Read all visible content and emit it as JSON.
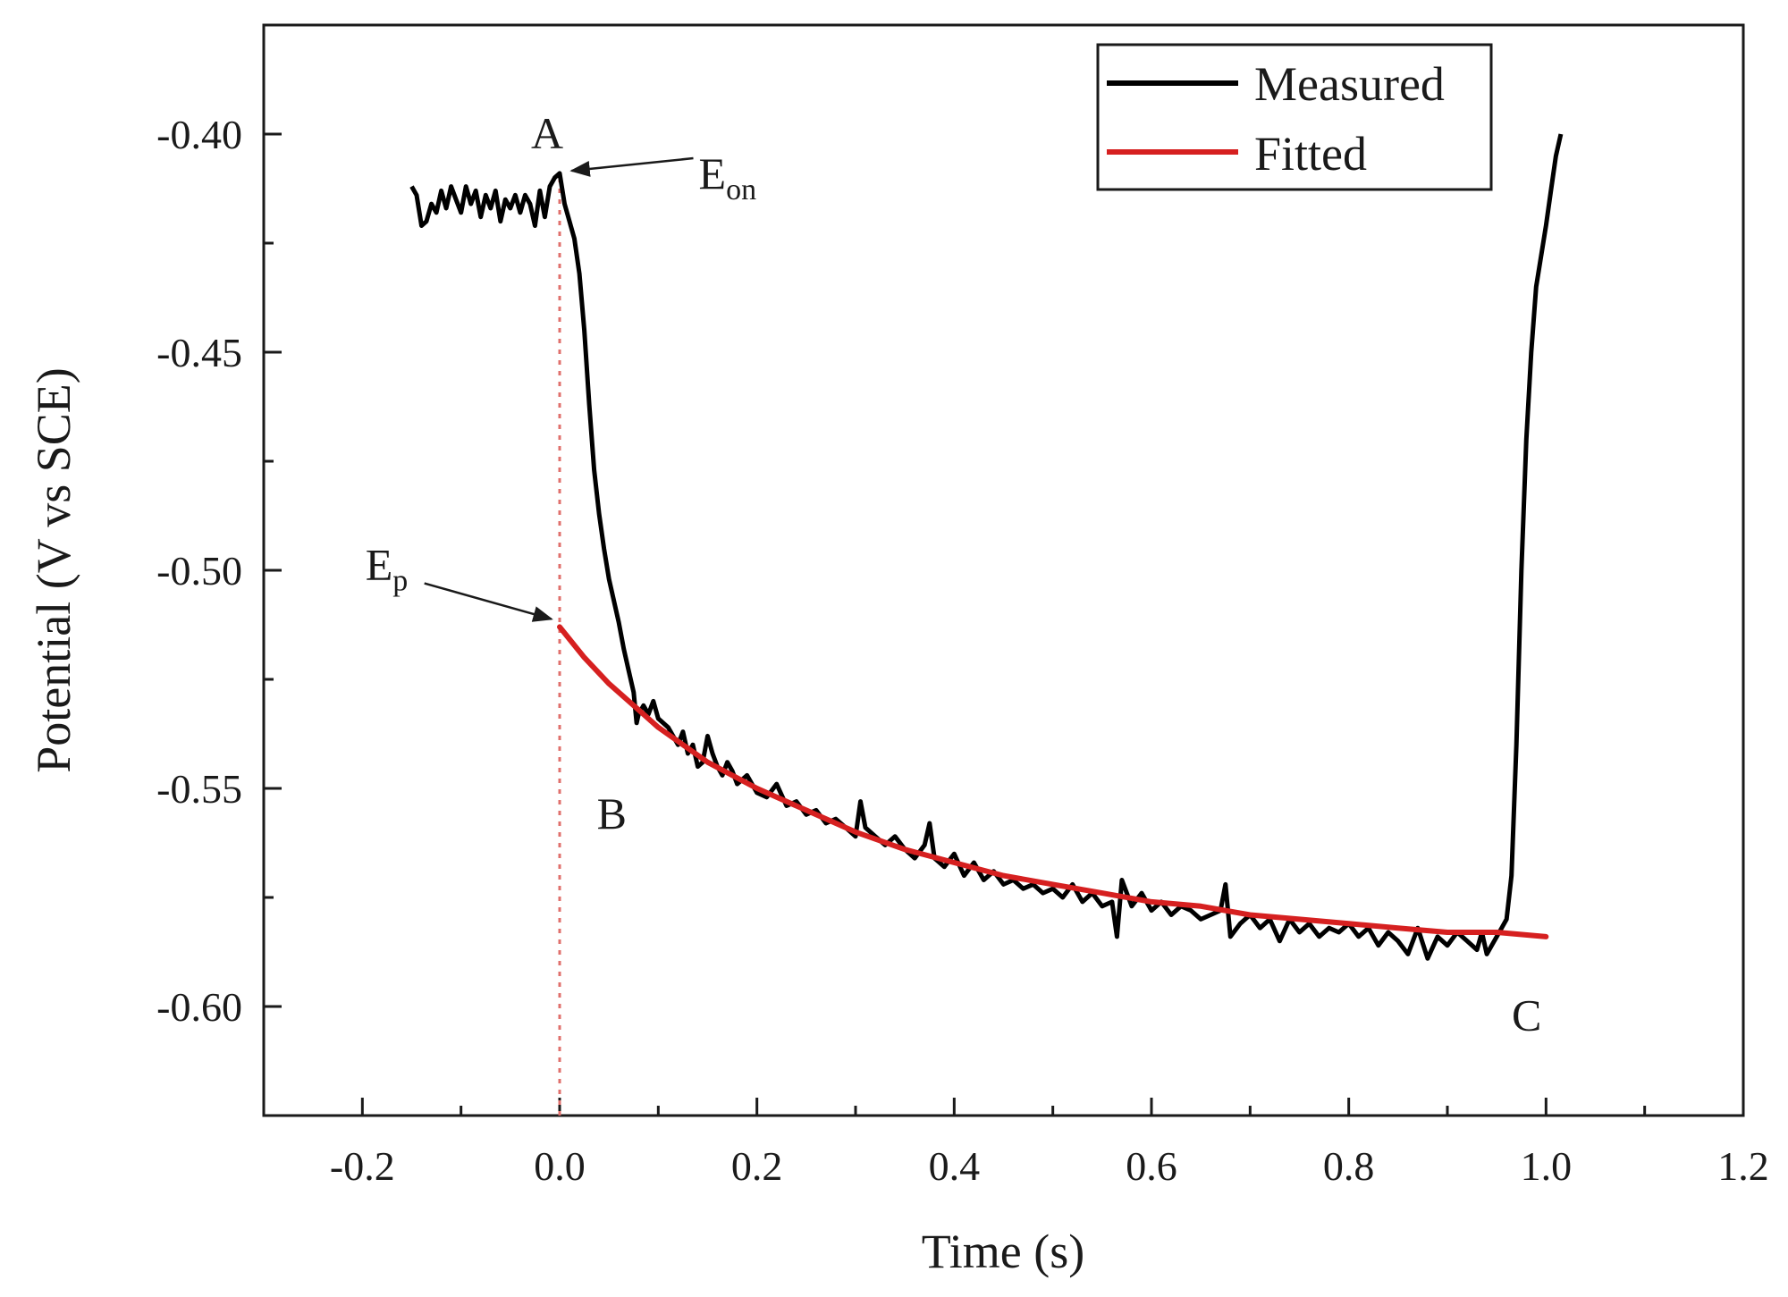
{
  "chart_data": {
    "type": "line",
    "title": "",
    "xlabel": "Time (s)",
    "ylabel": "Potential (V vs SCE)",
    "xlim": [
      -0.3,
      1.2
    ],
    "ylim": [
      -0.625,
      -0.375
    ],
    "xticks": [
      -0.2,
      0.0,
      0.2,
      0.4,
      0.6,
      0.8,
      1.0,
      1.2
    ],
    "xtick_labels": [
      "-0.2",
      "0.0",
      "0.2",
      "0.4",
      "0.6",
      "0.8",
      "1.0",
      "1.2"
    ],
    "yticks": [
      -0.4,
      -0.45,
      -0.5,
      -0.55,
      -0.6
    ],
    "ytick_labels": [
      "-0.40",
      "-0.45",
      "-0.50",
      "-0.55",
      "-0.60"
    ],
    "grid": false,
    "legend_position": "top-right",
    "series": [
      {
        "name": "Measured",
        "color": "#000000",
        "x": [
          -0.15,
          -0.145,
          -0.14,
          -0.135,
          -0.13,
          -0.125,
          -0.12,
          -0.115,
          -0.11,
          -0.105,
          -0.1,
          -0.095,
          -0.09,
          -0.085,
          -0.08,
          -0.075,
          -0.07,
          -0.065,
          -0.06,
          -0.055,
          -0.05,
          -0.045,
          -0.04,
          -0.035,
          -0.03,
          -0.025,
          -0.02,
          -0.015,
          -0.01,
          -0.005,
          0.0,
          0.005,
          0.01,
          0.015,
          0.02,
          0.025,
          0.03,
          0.035,
          0.04,
          0.045,
          0.05,
          0.055,
          0.06,
          0.065,
          0.07,
          0.075,
          0.078,
          0.08,
          0.085,
          0.09,
          0.095,
          0.1,
          0.105,
          0.11,
          0.115,
          0.12,
          0.125,
          0.13,
          0.135,
          0.14,
          0.145,
          0.15,
          0.155,
          0.16,
          0.165,
          0.17,
          0.175,
          0.18,
          0.19,
          0.2,
          0.21,
          0.22,
          0.23,
          0.24,
          0.25,
          0.26,
          0.27,
          0.28,
          0.29,
          0.3,
          0.305,
          0.31,
          0.32,
          0.33,
          0.34,
          0.35,
          0.36,
          0.37,
          0.375,
          0.38,
          0.39,
          0.4,
          0.41,
          0.42,
          0.43,
          0.44,
          0.45,
          0.46,
          0.47,
          0.48,
          0.49,
          0.5,
          0.51,
          0.52,
          0.53,
          0.54,
          0.55,
          0.56,
          0.565,
          0.57,
          0.58,
          0.59,
          0.6,
          0.61,
          0.62,
          0.63,
          0.64,
          0.65,
          0.66,
          0.67,
          0.675,
          0.68,
          0.69,
          0.7,
          0.71,
          0.72,
          0.73,
          0.74,
          0.75,
          0.76,
          0.77,
          0.78,
          0.79,
          0.8,
          0.81,
          0.82,
          0.83,
          0.84,
          0.85,
          0.86,
          0.87,
          0.88,
          0.89,
          0.9,
          0.91,
          0.92,
          0.93,
          0.935,
          0.94,
          0.945,
          0.95,
          0.955,
          0.96,
          0.965,
          0.97,
          0.975,
          0.98,
          0.985,
          0.99,
          0.995,
          1.0,
          1.005,
          1.01,
          1.015
        ],
        "y": [
          -0.412,
          -0.414,
          -0.421,
          -0.42,
          -0.416,
          -0.418,
          -0.413,
          -0.417,
          -0.412,
          -0.415,
          -0.418,
          -0.412,
          -0.416,
          -0.413,
          -0.419,
          -0.414,
          -0.417,
          -0.413,
          -0.42,
          -0.415,
          -0.417,
          -0.414,
          -0.418,
          -0.414,
          -0.416,
          -0.421,
          -0.413,
          -0.419,
          -0.412,
          -0.41,
          -0.409,
          -0.416,
          -0.42,
          -0.424,
          -0.432,
          -0.445,
          -0.462,
          -0.477,
          -0.487,
          -0.495,
          -0.502,
          -0.507,
          -0.512,
          -0.518,
          -0.523,
          -0.528,
          -0.535,
          -0.533,
          -0.531,
          -0.533,
          -0.53,
          -0.534,
          -0.535,
          -0.536,
          -0.538,
          -0.54,
          -0.537,
          -0.542,
          -0.54,
          -0.545,
          -0.544,
          -0.538,
          -0.542,
          -0.545,
          -0.547,
          -0.544,
          -0.546,
          -0.549,
          -0.547,
          -0.551,
          -0.552,
          -0.549,
          -0.554,
          -0.553,
          -0.556,
          -0.555,
          -0.558,
          -0.557,
          -0.559,
          -0.561,
          -0.553,
          -0.559,
          -0.561,
          -0.563,
          -0.561,
          -0.564,
          -0.566,
          -0.563,
          -0.558,
          -0.566,
          -0.568,
          -0.565,
          -0.57,
          -0.567,
          -0.571,
          -0.569,
          -0.572,
          -0.571,
          -0.573,
          -0.572,
          -0.574,
          -0.573,
          -0.575,
          -0.572,
          -0.576,
          -0.574,
          -0.577,
          -0.576,
          -0.584,
          -0.571,
          -0.577,
          -0.574,
          -0.578,
          -0.576,
          -0.579,
          -0.577,
          -0.578,
          -0.58,
          -0.579,
          -0.578,
          -0.572,
          -0.584,
          -0.581,
          -0.579,
          -0.582,
          -0.58,
          -0.585,
          -0.58,
          -0.583,
          -0.581,
          -0.584,
          -0.582,
          -0.583,
          -0.581,
          -0.584,
          -0.582,
          -0.586,
          -0.583,
          -0.585,
          -0.588,
          -0.582,
          -0.589,
          -0.584,
          -0.586,
          -0.583,
          -0.585,
          -0.587,
          -0.583,
          -0.588,
          -0.586,
          -0.584,
          -0.582,
          -0.58,
          -0.57,
          -0.54,
          -0.5,
          -0.47,
          -0.45,
          -0.435,
          -0.428,
          -0.421,
          -0.413,
          -0.405,
          -0.4
        ]
      },
      {
        "name": "Fitted",
        "color": "#d62020",
        "x": [
          0.0,
          0.025,
          0.05,
          0.075,
          0.1,
          0.125,
          0.15,
          0.175,
          0.2,
          0.25,
          0.3,
          0.35,
          0.4,
          0.45,
          0.5,
          0.55,
          0.6,
          0.65,
          0.7,
          0.75,
          0.8,
          0.85,
          0.9,
          0.95,
          1.0
        ],
        "y": [
          -0.513,
          -0.52,
          -0.526,
          -0.531,
          -0.536,
          -0.54,
          -0.544,
          -0.547,
          -0.55,
          -0.555,
          -0.56,
          -0.564,
          -0.567,
          -0.57,
          -0.572,
          -0.574,
          -0.576,
          -0.577,
          -0.579,
          -0.58,
          -0.581,
          -0.582,
          -0.583,
          -0.583,
          -0.584
        ]
      }
    ],
    "annotations": [
      {
        "id": "A",
        "text": "A",
        "x": 0.0,
        "y": -0.409
      },
      {
        "id": "B",
        "text": "B",
        "x": 0.08,
        "y": -0.535
      },
      {
        "id": "C",
        "text": "C",
        "x": 0.955,
        "y": -0.589
      },
      {
        "id": "Eon",
        "text": "E",
        "sub": "on",
        "target_x": 0.005,
        "target_y": -0.408
      },
      {
        "id": "Ep",
        "text": "E",
        "sub": "p",
        "target_x": -0.003,
        "target_y": -0.512
      }
    ],
    "reference_line": {
      "x": 0.0,
      "style": "dotted",
      "color": "#e0706c",
      "y_from": -0.625,
      "y_to": -0.409
    }
  }
}
